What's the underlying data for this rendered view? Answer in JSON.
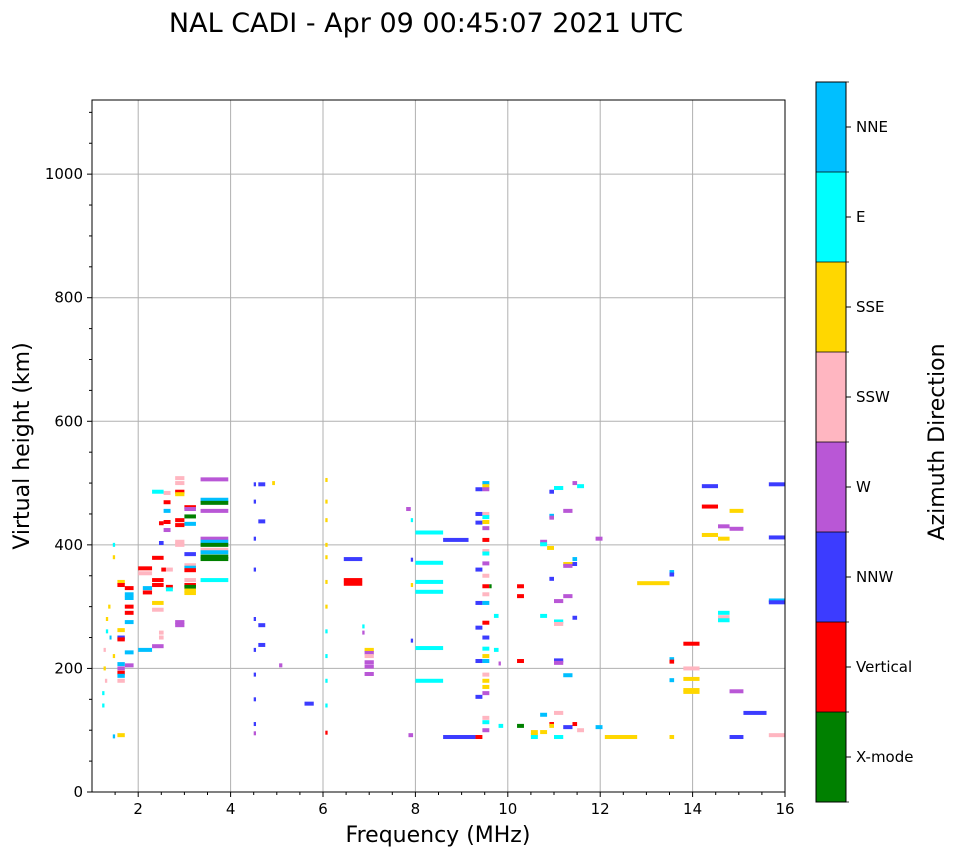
{
  "chart_data": {
    "type": "scatter",
    "title": "NAL CADI - Apr 09 00:45:07 2021 UTC",
    "xlabel": "Frequency (MHz)",
    "ylabel": "Virtual height (km)",
    "xlim": [
      1,
      16
    ],
    "ylim": [
      0,
      1120
    ],
    "grid": true,
    "x_ticks": [
      "2",
      "4",
      "6",
      "8",
      "10",
      "12",
      "14",
      "16"
    ],
    "x_tick_values": [
      2,
      4,
      6,
      8,
      10,
      12,
      14,
      16
    ],
    "y_ticks": [
      "0",
      "200",
      "400",
      "600",
      "800",
      "1000"
    ],
    "y_tick_values": [
      0,
      200,
      400,
      600,
      800,
      1000
    ],
    "colorbar": {
      "label": "Azimuth Direction",
      "categories": [
        "X-mode",
        "Vertical",
        "NNW",
        "W",
        "SSW",
        "SSE",
        "E",
        "NNE"
      ],
      "colors": [
        "#008000",
        "#ff0000",
        "#3c3cff",
        "#b957d6",
        "#ffb6c1",
        "#ffd700",
        "#00ffff",
        "#00bfff"
      ]
    },
    "segment_format": "[freq_start_MHz, freq_end_MHz, virtual_height_km, category_index]",
    "segments": [
      [
        3.35,
        3.95,
        506,
        3
      ],
      [
        3.35,
        3.95,
        473,
        7
      ],
      [
        3.35,
        3.95,
        468,
        0
      ],
      [
        3.35,
        3.95,
        455,
        3
      ],
      [
        3.35,
        3.95,
        410,
        3
      ],
      [
        3.35,
        3.95,
        405,
        7
      ],
      [
        3.35,
        3.95,
        400,
        0
      ],
      [
        3.35,
        3.95,
        392,
        4
      ],
      [
        3.35,
        3.95,
        388,
        7
      ],
      [
        3.35,
        3.95,
        381,
        0
      ],
      [
        3.35,
        3.95,
        377,
        0
      ],
      [
        3.35,
        3.95,
        343,
        6
      ],
      [
        2.8,
        3.0,
        508,
        4
      ],
      [
        2.8,
        3.0,
        500,
        4
      ],
      [
        2.8,
        3.0,
        486,
        1
      ],
      [
        2.8,
        3.0,
        482,
        5
      ],
      [
        3.0,
        3.25,
        461,
        1
      ],
      [
        3.0,
        3.25,
        446,
        0
      ],
      [
        3.0,
        3.25,
        434,
        7
      ],
      [
        3.0,
        3.25,
        458,
        3
      ],
      [
        3.0,
        3.25,
        385,
        2
      ],
      [
        3.0,
        3.25,
        367,
        4
      ],
      [
        3.0,
        3.25,
        363,
        7
      ],
      [
        3.0,
        3.25,
        359,
        1
      ],
      [
        3.0,
        3.25,
        343,
        4
      ],
      [
        3.0,
        3.25,
        335,
        1
      ],
      [
        3.0,
        3.25,
        332,
        0
      ],
      [
        3.0,
        3.25,
        322,
        5
      ],
      [
        3.0,
        3.25,
        326,
        5
      ],
      [
        2.8,
        3.0,
        440,
        1
      ],
      [
        2.8,
        3.0,
        432,
        1
      ],
      [
        2.8,
        3.0,
        405,
        4
      ],
      [
        2.8,
        3.0,
        400,
        4
      ],
      [
        2.8,
        3.0,
        275,
        3
      ],
      [
        2.8,
        3.0,
        270,
        3
      ],
      [
        2.55,
        2.7,
        437,
        1
      ],
      [
        2.55,
        2.7,
        424,
        3
      ],
      [
        2.55,
        2.7,
        484,
        4
      ],
      [
        2.55,
        2.7,
        469,
        1
      ],
      [
        2.55,
        2.7,
        455,
        7
      ],
      [
        2.6,
        2.75,
        332,
        1
      ],
      [
        2.6,
        2.75,
        328,
        6
      ],
      [
        2.6,
        2.75,
        360,
        4
      ],
      [
        2.45,
        2.55,
        403,
        2
      ],
      [
        2.45,
        2.55,
        435,
        1
      ],
      [
        2.3,
        2.55,
        486,
        6
      ],
      [
        2.3,
        2.55,
        379,
        1
      ],
      [
        2.3,
        2.55,
        343,
        1
      ],
      [
        2.3,
        2.55,
        335,
        1
      ],
      [
        2.3,
        2.55,
        306,
        5
      ],
      [
        2.3,
        2.55,
        295,
        4
      ],
      [
        2.3,
        2.55,
        236,
        3
      ],
      [
        2.1,
        2.3,
        323,
        1
      ],
      [
        2.1,
        2.3,
        330,
        7
      ],
      [
        2.0,
        2.3,
        354,
        4
      ],
      [
        2.0,
        2.3,
        362,
        1
      ],
      [
        2.0,
        2.3,
        230,
        7
      ],
      [
        2.5,
        2.6,
        360,
        1
      ],
      [
        2.45,
        2.55,
        258,
        4
      ],
      [
        2.45,
        2.55,
        250,
        4
      ],
      [
        1.71,
        1.9,
        300,
        1
      ],
      [
        1.71,
        1.9,
        290,
        1
      ],
      [
        1.71,
        1.9,
        320,
        7
      ],
      [
        1.71,
        1.9,
        330,
        1
      ],
      [
        1.71,
        1.9,
        275,
        7
      ],
      [
        1.71,
        1.9,
        314,
        7
      ],
      [
        1.71,
        1.9,
        226,
        7
      ],
      [
        1.71,
        1.9,
        205,
        3
      ],
      [
        1.55,
        1.71,
        340,
        5
      ],
      [
        1.55,
        1.71,
        335,
        1
      ],
      [
        1.55,
        1.71,
        262,
        5
      ],
      [
        1.55,
        1.71,
        250,
        2
      ],
      [
        1.55,
        1.71,
        247,
        1
      ],
      [
        1.55,
        1.71,
        207,
        7
      ],
      [
        1.55,
        1.71,
        200,
        3
      ],
      [
        1.55,
        1.71,
        193,
        1
      ],
      [
        1.55,
        1.71,
        188,
        7
      ],
      [
        1.55,
        1.71,
        180,
        4
      ],
      [
        1.55,
        1.71,
        92,
        5
      ],
      [
        1.22,
        1.27,
        140,
        6
      ],
      [
        1.22,
        1.27,
        160,
        6
      ],
      [
        1.25,
        1.3,
        200,
        5
      ],
      [
        1.25,
        1.3,
        230,
        4
      ],
      [
        1.3,
        1.35,
        260,
        6
      ],
      [
        1.3,
        1.35,
        280,
        5
      ],
      [
        1.28,
        1.33,
        180,
        4
      ],
      [
        1.35,
        1.4,
        300,
        5
      ],
      [
        1.38,
        1.42,
        250,
        7
      ],
      [
        1.45,
        1.5,
        220,
        5
      ],
      [
        1.45,
        1.5,
        380,
        5
      ],
      [
        1.45,
        1.5,
        400,
        6
      ],
      [
        1.45,
        1.5,
        90,
        7
      ],
      [
        4.5,
        4.55,
        498,
        2
      ],
      [
        4.6,
        4.75,
        498,
        2
      ],
      [
        4.5,
        4.55,
        470,
        2
      ],
      [
        4.6,
        4.75,
        438,
        2
      ],
      [
        4.5,
        4.55,
        410,
        2
      ],
      [
        4.5,
        4.55,
        360,
        2
      ],
      [
        4.5,
        4.55,
        280,
        2
      ],
      [
        4.6,
        4.75,
        270,
        2
      ],
      [
        4.6,
        4.75,
        238,
        2
      ],
      [
        4.5,
        4.55,
        230,
        2
      ],
      [
        4.5,
        4.55,
        190,
        2
      ],
      [
        4.5,
        4.55,
        150,
        2
      ],
      [
        4.5,
        4.55,
        110,
        2
      ],
      [
        4.5,
        4.55,
        95,
        3
      ],
      [
        4.9,
        4.96,
        500,
        5
      ],
      [
        5.05,
        5.12,
        205,
        3
      ],
      [
        5.6,
        5.8,
        143,
        2
      ],
      [
        6.05,
        6.1,
        505,
        5
      ],
      [
        6.05,
        6.1,
        470,
        5
      ],
      [
        6.05,
        6.1,
        440,
        5
      ],
      [
        6.05,
        6.1,
        400,
        5
      ],
      [
        6.05,
        6.1,
        380,
        5
      ],
      [
        6.05,
        6.1,
        340,
        5
      ],
      [
        6.05,
        6.1,
        300,
        5
      ],
      [
        6.05,
        6.1,
        260,
        6
      ],
      [
        6.05,
        6.1,
        220,
        6
      ],
      [
        6.05,
        6.1,
        180,
        6
      ],
      [
        6.05,
        6.1,
        140,
        6
      ],
      [
        6.05,
        6.1,
        96,
        1
      ],
      [
        6.45,
        6.85,
        377,
        2
      ],
      [
        6.45,
        6.85,
        343,
        1
      ],
      [
        6.45,
        6.85,
        337,
        1
      ],
      [
        6.85,
        6.9,
        268,
        6
      ],
      [
        6.85,
        6.9,
        258,
        3
      ],
      [
        6.9,
        7.1,
        230,
        5
      ],
      [
        6.9,
        7.1,
        225,
        3
      ],
      [
        6.9,
        7.1,
        220,
        4
      ],
      [
        6.9,
        7.1,
        210,
        3
      ],
      [
        6.9,
        7.1,
        203,
        3
      ],
      [
        6.9,
        7.1,
        191,
        3
      ],
      [
        7.8,
        7.9,
        458,
        3
      ],
      [
        7.9,
        7.95,
        440,
        6
      ],
      [
        7.9,
        7.95,
        376,
        2
      ],
      [
        7.9,
        7.95,
        335,
        5
      ],
      [
        7.9,
        7.95,
        245,
        2
      ],
      [
        7.85,
        7.95,
        92,
        3
      ],
      [
        8.0,
        8.6,
        420,
        6
      ],
      [
        8.0,
        8.6,
        371,
        6
      ],
      [
        8.0,
        8.6,
        340,
        6
      ],
      [
        8.0,
        8.6,
        324,
        6
      ],
      [
        8.0,
        8.6,
        233,
        6
      ],
      [
        8.0,
        8.6,
        180,
        6
      ],
      [
        8.6,
        9.15,
        408,
        2
      ],
      [
        8.6,
        9.3,
        89,
        2
      ],
      [
        9.3,
        9.45,
        89,
        1
      ],
      [
        9.3,
        9.45,
        490,
        2
      ],
      [
        9.3,
        9.45,
        450,
        2
      ],
      [
        9.3,
        9.45,
        436,
        2
      ],
      [
        9.3,
        9.45,
        360,
        2
      ],
      [
        9.3,
        9.45,
        306,
        2
      ],
      [
        9.3,
        9.45,
        266,
        2
      ],
      [
        9.3,
        9.45,
        212,
        2
      ],
      [
        9.3,
        9.45,
        154,
        2
      ],
      [
        9.45,
        9.6,
        500,
        7
      ],
      [
        9.45,
        9.6,
        495,
        5
      ],
      [
        9.45,
        9.6,
        490,
        3
      ],
      [
        9.45,
        9.6,
        450,
        4
      ],
      [
        9.45,
        9.6,
        445,
        6
      ],
      [
        9.45,
        9.6,
        437,
        5
      ],
      [
        9.45,
        9.6,
        427,
        3
      ],
      [
        9.45,
        9.6,
        408,
        1
      ],
      [
        9.45,
        9.6,
        390,
        4
      ],
      [
        9.45,
        9.6,
        386,
        6
      ],
      [
        9.45,
        9.6,
        370,
        3
      ],
      [
        9.45,
        9.6,
        350,
        4
      ],
      [
        9.45,
        9.6,
        333,
        1
      ],
      [
        9.6,
        9.65,
        333,
        0
      ],
      [
        9.45,
        9.6,
        320,
        4
      ],
      [
        9.45,
        9.6,
        306,
        7
      ],
      [
        9.45,
        9.6,
        274,
        1
      ],
      [
        9.45,
        9.6,
        250,
        2
      ],
      [
        9.45,
        9.6,
        232,
        6
      ],
      [
        9.45,
        9.6,
        220,
        5
      ],
      [
        9.45,
        9.6,
        212,
        7
      ],
      [
        9.45,
        9.6,
        190,
        4
      ],
      [
        9.45,
        9.6,
        180,
        5
      ],
      [
        9.45,
        9.6,
        170,
        5
      ],
      [
        9.45,
        9.6,
        160,
        3
      ],
      [
        9.45,
        9.6,
        120,
        4
      ],
      [
        9.45,
        9.6,
        113,
        6
      ],
      [
        9.45,
        9.6,
        100,
        3
      ],
      [
        9.7,
        9.8,
        230,
        6
      ],
      [
        9.8,
        9.9,
        107,
        6
      ],
      [
        9.7,
        9.8,
        285,
        6
      ],
      [
        9.8,
        9.85,
        208,
        3
      ],
      [
        10.2,
        10.35,
        107,
        0
      ],
      [
        10.2,
        10.35,
        333,
        1
      ],
      [
        10.2,
        10.35,
        317,
        1
      ],
      [
        10.2,
        10.35,
        212,
        1
      ],
      [
        10.5,
        10.65,
        97,
        5
      ],
      [
        10.5,
        10.65,
        92,
        5
      ],
      [
        10.5,
        10.65,
        89,
        6
      ],
      [
        10.7,
        10.85,
        97,
        5
      ],
      [
        10.7,
        10.85,
        125,
        7
      ],
      [
        10.7,
        10.85,
        285,
        6
      ],
      [
        10.7,
        10.85,
        405,
        3
      ],
      [
        10.7,
        10.85,
        401,
        6
      ],
      [
        10.85,
        11.0,
        395,
        5
      ],
      [
        10.9,
        11.0,
        486,
        2
      ],
      [
        10.9,
        11.0,
        447,
        7
      ],
      [
        10.9,
        11.0,
        444,
        3
      ],
      [
        10.9,
        11.0,
        345,
        2
      ],
      [
        10.9,
        11.0,
        110,
        1
      ],
      [
        10.9,
        11.0,
        107,
        5
      ],
      [
        11.0,
        11.2,
        492,
        6
      ],
      [
        11.0,
        11.2,
        276,
        6
      ],
      [
        11.0,
        11.2,
        272,
        4
      ],
      [
        11.0,
        11.2,
        309,
        3
      ],
      [
        11.0,
        11.2,
        213,
        2
      ],
      [
        11.0,
        11.2,
        209,
        3
      ],
      [
        11.0,
        11.2,
        128,
        4
      ],
      [
        11.0,
        11.2,
        89,
        6
      ],
      [
        11.2,
        11.4,
        455,
        3
      ],
      [
        11.2,
        11.4,
        369,
        5
      ],
      [
        11.2,
        11.4,
        366,
        3
      ],
      [
        11.2,
        11.4,
        317,
        3
      ],
      [
        11.2,
        11.4,
        189,
        7
      ],
      [
        11.2,
        11.4,
        105,
        2
      ],
      [
        11.4,
        11.5,
        377,
        7
      ],
      [
        11.4,
        11.5,
        369,
        2
      ],
      [
        11.4,
        11.5,
        282,
        2
      ],
      [
        11.4,
        11.5,
        110,
        1
      ],
      [
        11.4,
        11.5,
        500,
        3
      ],
      [
        11.5,
        11.65,
        495,
        6
      ],
      [
        11.5,
        11.65,
        100,
        4
      ],
      [
        11.9,
        12.05,
        410,
        3
      ],
      [
        11.9,
        12.05,
        105,
        7
      ],
      [
        12.1,
        12.8,
        89,
        5
      ],
      [
        12.8,
        13.5,
        338,
        5
      ],
      [
        13.5,
        13.6,
        356,
        7
      ],
      [
        13.5,
        13.6,
        352,
        2
      ],
      [
        13.5,
        13.6,
        215,
        7
      ],
      [
        13.5,
        13.6,
        211,
        1
      ],
      [
        13.5,
        13.6,
        181,
        7
      ],
      [
        13.5,
        13.6,
        89,
        5
      ],
      [
        13.8,
        14.15,
        240,
        1
      ],
      [
        13.8,
        14.15,
        200,
        4
      ],
      [
        13.8,
        14.15,
        183,
        5
      ],
      [
        13.8,
        14.15,
        165,
        5
      ],
      [
        13.8,
        14.15,
        162,
        5
      ],
      [
        14.2,
        14.55,
        495,
        2
      ],
      [
        14.2,
        14.55,
        462,
        1
      ],
      [
        14.2,
        14.55,
        416,
        5
      ],
      [
        14.55,
        14.8,
        410,
        5
      ],
      [
        14.55,
        14.8,
        430,
        3
      ],
      [
        14.8,
        15.1,
        455,
        5
      ],
      [
        14.8,
        15.1,
        426,
        3
      ],
      [
        14.55,
        14.8,
        290,
        6
      ],
      [
        14.55,
        14.8,
        283,
        4
      ],
      [
        14.55,
        14.8,
        278,
        6
      ],
      [
        14.8,
        15.1,
        163,
        3
      ],
      [
        14.8,
        15.1,
        89,
        2
      ],
      [
        15.1,
        15.6,
        128,
        2
      ],
      [
        15.65,
        16,
        498,
        2
      ],
      [
        15.65,
        16,
        412,
        2
      ],
      [
        15.65,
        16,
        310,
        7
      ],
      [
        15.65,
        16,
        307,
        2
      ],
      [
        15.65,
        16,
        92,
        4
      ]
    ]
  }
}
